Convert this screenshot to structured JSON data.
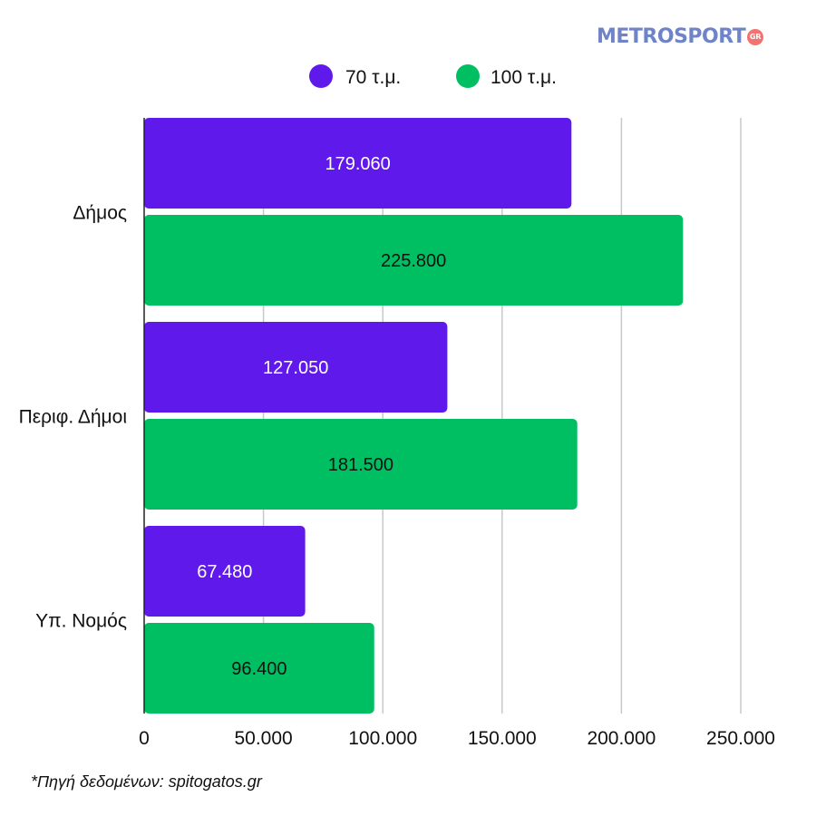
{
  "brand": {
    "name": "METROSPORT",
    "badge": "GR"
  },
  "footnote": "*Πηγή δεδομένων:  spitogatos.gr",
  "chart_data": {
    "type": "bar",
    "orientation": "horizontal",
    "categories": [
      "Δήμος",
      "Περιφ. Δήμοι",
      "Υπ. Νομός"
    ],
    "series": [
      {
        "name": "70 τ.μ.",
        "color": "#5f1aeb",
        "label_color": "#ffffff",
        "values": [
          179060,
          127050,
          67480
        ],
        "labels": [
          "179.060",
          "127.050",
          "67.480"
        ]
      },
      {
        "name": "100 τ.μ.",
        "color": "#00bf63",
        "label_color": "#111111",
        "values": [
          225800,
          181500,
          96400
        ],
        "labels": [
          "225.800",
          "181.500",
          "96.400"
        ]
      }
    ],
    "xlim": [
      0,
      250000
    ],
    "xticks": [
      0,
      50000,
      100000,
      150000,
      200000,
      250000
    ],
    "xtick_labels": [
      "0",
      "50.000",
      "100.000",
      "150.000",
      "200.000",
      "250.000"
    ],
    "grid": true,
    "legend": "top"
  }
}
